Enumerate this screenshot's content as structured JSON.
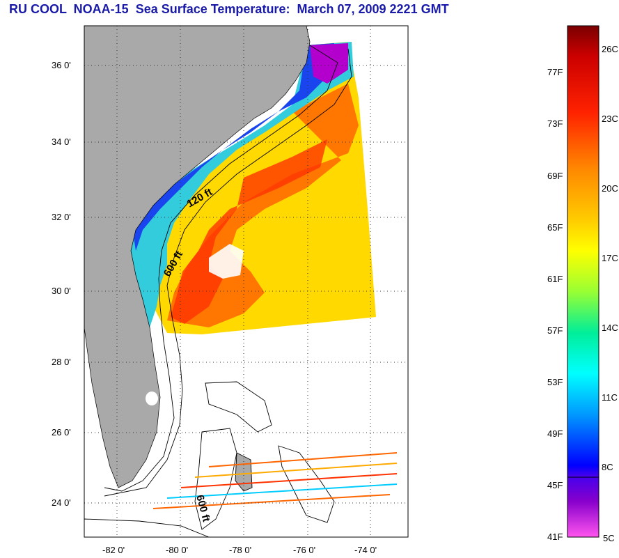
{
  "title": "RU COOL  NOAA-15  Sea Surface Temperature:  March 07, 2009 2221 GMT",
  "map": {
    "lat_labels": [
      "36 0'",
      "34 0'",
      "32 0'",
      "30 0'",
      "28 0'",
      "26 0'",
      "24 0'"
    ],
    "lon_labels": [
      "-82 0'",
      "-80 0'",
      "-78 0'",
      "-76 0'",
      "-74 0'"
    ],
    "contour_labels": [
      "120 ft",
      "600 ft",
      "600 ft"
    ],
    "colors": {
      "land": "#a9a9a9",
      "ocean_background": "#ffffff",
      "grid": "#555555"
    }
  },
  "colorbar": {
    "fahrenheit_labels": [
      "77F",
      "73F",
      "69F",
      "65F",
      "61F",
      "57F",
      "53F",
      "49F",
      "45F",
      "41F"
    ],
    "celsius_labels": [
      "26C",
      "23C",
      "20C",
      "17C",
      "14C",
      "11C",
      "8C",
      "5C"
    ],
    "color_stops": [
      "#7a0000",
      "#ff0000",
      "#ff8800",
      "#ffff00",
      "#00ff88",
      "#00ffff",
      "#0000ff",
      "#7000b0",
      "#ff55ee"
    ]
  }
}
